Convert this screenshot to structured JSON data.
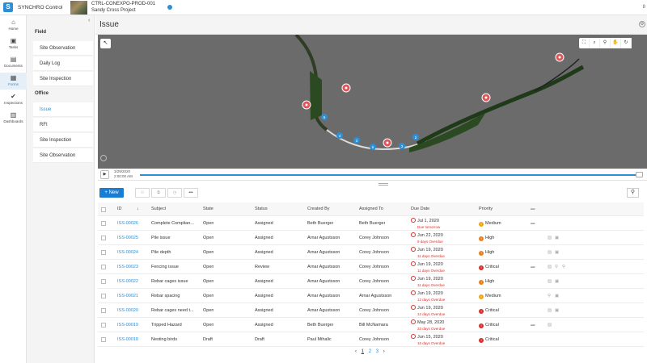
{
  "app": {
    "title": "SYNCHRO Control",
    "logo_glyph": "S",
    "project_code": "CTRL-CONEXPO-PROD-001",
    "project_name": "Sandy Cross Project",
    "topbar_right": "8"
  },
  "nav": [
    {
      "label": "Home",
      "icon": "home-icon",
      "glyph": "⌂"
    },
    {
      "label": "Tasks",
      "icon": "tasks-icon",
      "glyph": "▣"
    },
    {
      "label": "Documents",
      "icon": "documents-icon",
      "glyph": "▤"
    },
    {
      "label": "Forms",
      "icon": "forms-icon",
      "glyph": "▦"
    },
    {
      "label": "Inspections",
      "icon": "inspections-icon",
      "glyph": "✔"
    },
    {
      "label": "Dashboards",
      "icon": "dashboards-icon",
      "glyph": "▥"
    }
  ],
  "submenu": {
    "collapse_glyph": "‹",
    "field_header": "Field",
    "field_items": [
      "Site Observation",
      "Daily Log",
      "Site Inspection"
    ],
    "office_header": "Office",
    "office_items": [
      "Issue",
      "RFI",
      "Site Inspection",
      "Site Observation"
    ],
    "active": "Issue"
  },
  "page": {
    "title": "Issue",
    "header_icon": "⚙"
  },
  "viewport": {
    "select_glyph": "↖",
    "tools": [
      {
        "name": "fit-view-icon",
        "glyph": "⛶"
      },
      {
        "name": "zoom-icon",
        "glyph": "⌕"
      },
      {
        "name": "search-icon",
        "glyph": "⚲"
      },
      {
        "name": "pan-hand-icon",
        "glyph": "✋"
      },
      {
        "name": "rotate-icon",
        "glyph": "↻"
      }
    ],
    "markers": [
      "6",
      "4",
      "3",
      "5",
      "3",
      "2"
    ]
  },
  "timeline": {
    "date": "3/29/2020",
    "time": "2:00:00 AM",
    "play_glyph": "▶"
  },
  "toolbar": {
    "new_label": "New",
    "new_glyph": "+",
    "btn_assign": "⚇",
    "btn_copy": "⧉",
    "btn_history": "◷",
    "btn_more": "•••",
    "search_glyph": "⚲"
  },
  "grid": {
    "headers": {
      "id": "ID",
      "sort": "↓",
      "subject": "Subject",
      "state": "State",
      "status": "Status",
      "created_by": "Created By",
      "assigned_to": "Assigned To",
      "due_date": "Due Date",
      "priority": "Priority"
    },
    "rows": [
      {
        "id": "ISS-00026",
        "subject": "Complete Complian...",
        "state": "Open",
        "status": "Assigned",
        "created_by": "Beth Buerger",
        "assigned_to": "Beth Buerger",
        "due": "Jul 1, 2020",
        "due_note": "Due tomorrow",
        "priority": "Medium",
        "prio_color": "#f0a516",
        "prio_glyph": "!",
        "comment": true,
        "actions": []
      },
      {
        "id": "ISS-00025",
        "subject": "Pile issue",
        "state": "Open",
        "status": "Assigned",
        "created_by": "Arnar Agustsson",
        "assigned_to": "Corey Johnson",
        "due": "Jun 22, 2020",
        "due_note": "9 days Overdue",
        "priority": "High",
        "prio_color": "#e8801e",
        "prio_glyph": "↑",
        "comment": false,
        "actions": [
          "▨",
          "▣"
        ]
      },
      {
        "id": "ISS-00024",
        "subject": "Pile depth",
        "state": "Open",
        "status": "Assigned",
        "created_by": "Arnar Agustsson",
        "assigned_to": "Corey Johnson",
        "due": "Jun 19, 2020",
        "due_note": "11 days Overdue",
        "priority": "High",
        "prio_color": "#e8801e",
        "prio_glyph": "↑",
        "comment": false,
        "actions": [
          "▨",
          "▣"
        ]
      },
      {
        "id": "ISS-00023",
        "subject": "Fencing issue",
        "state": "Open",
        "status": "Review",
        "created_by": "Arnar Agustsson",
        "assigned_to": "Corey Johnson",
        "due": "Jun 19, 2020",
        "due_note": "11 days Overdue",
        "priority": "Critical",
        "prio_color": "#d9302c",
        "prio_glyph": "!",
        "comment": true,
        "actions": [
          "▨",
          "⚲",
          "⚲"
        ]
      },
      {
        "id": "ISS-00022",
        "subject": "Rebar cages issue",
        "state": "Open",
        "status": "Assigned",
        "created_by": "Arnar Agustsson",
        "assigned_to": "Corey Johnson",
        "due": "Jun 19, 2020",
        "due_note": "11 days Overdue",
        "priority": "High",
        "prio_color": "#e8801e",
        "prio_glyph": "↑",
        "comment": false,
        "actions": [
          "▨",
          "▣"
        ]
      },
      {
        "id": "ISS-00021",
        "subject": "Rebar spacing",
        "state": "Open",
        "status": "Assigned",
        "created_by": "Arnar Agustsson",
        "assigned_to": "Arnar Agustsson",
        "due": "Jun 19, 2020",
        "due_note": "12 days Overdue",
        "priority": "Medium",
        "prio_color": "#f0a516",
        "prio_glyph": "!",
        "comment": false,
        "actions": [
          "⚲",
          "▣"
        ]
      },
      {
        "id": "ISS-00020",
        "subject": "Rebar cages need t...",
        "state": "Open",
        "status": "Assigned",
        "created_by": "Arnar Agustsson",
        "assigned_to": "Corey Johnson",
        "due": "Jun 19, 2020",
        "due_note": "12 days Overdue",
        "priority": "Critical",
        "prio_color": "#d9302c",
        "prio_glyph": "!",
        "comment": false,
        "actions": [
          "▨",
          "▣"
        ]
      },
      {
        "id": "ISS-00019",
        "subject": "Tripped Hazard",
        "state": "Open",
        "status": "Assigned",
        "created_by": "Beth Buerger",
        "assigned_to": "Bill McNamara",
        "due": "May 28, 2020",
        "due_note": "33 days Overdue",
        "priority": "Critical",
        "prio_color": "#d9302c",
        "prio_glyph": "!",
        "comment": true,
        "actions": [
          "▨"
        ]
      },
      {
        "id": "ISS-00018",
        "subject": "Nesting birds",
        "state": "Draft",
        "status": "Draft",
        "created_by": "Paul Mihalic",
        "assigned_to": "Corey Johnson",
        "due": "Jun 15, 2020",
        "due_note": "16 days Overdue",
        "priority": "Critical",
        "prio_color": "#d9302c",
        "prio_glyph": "!",
        "comment": false,
        "actions": []
      }
    ]
  },
  "pager": {
    "prev": "‹",
    "pages": [
      "1",
      "2",
      "3"
    ],
    "next": "›"
  }
}
